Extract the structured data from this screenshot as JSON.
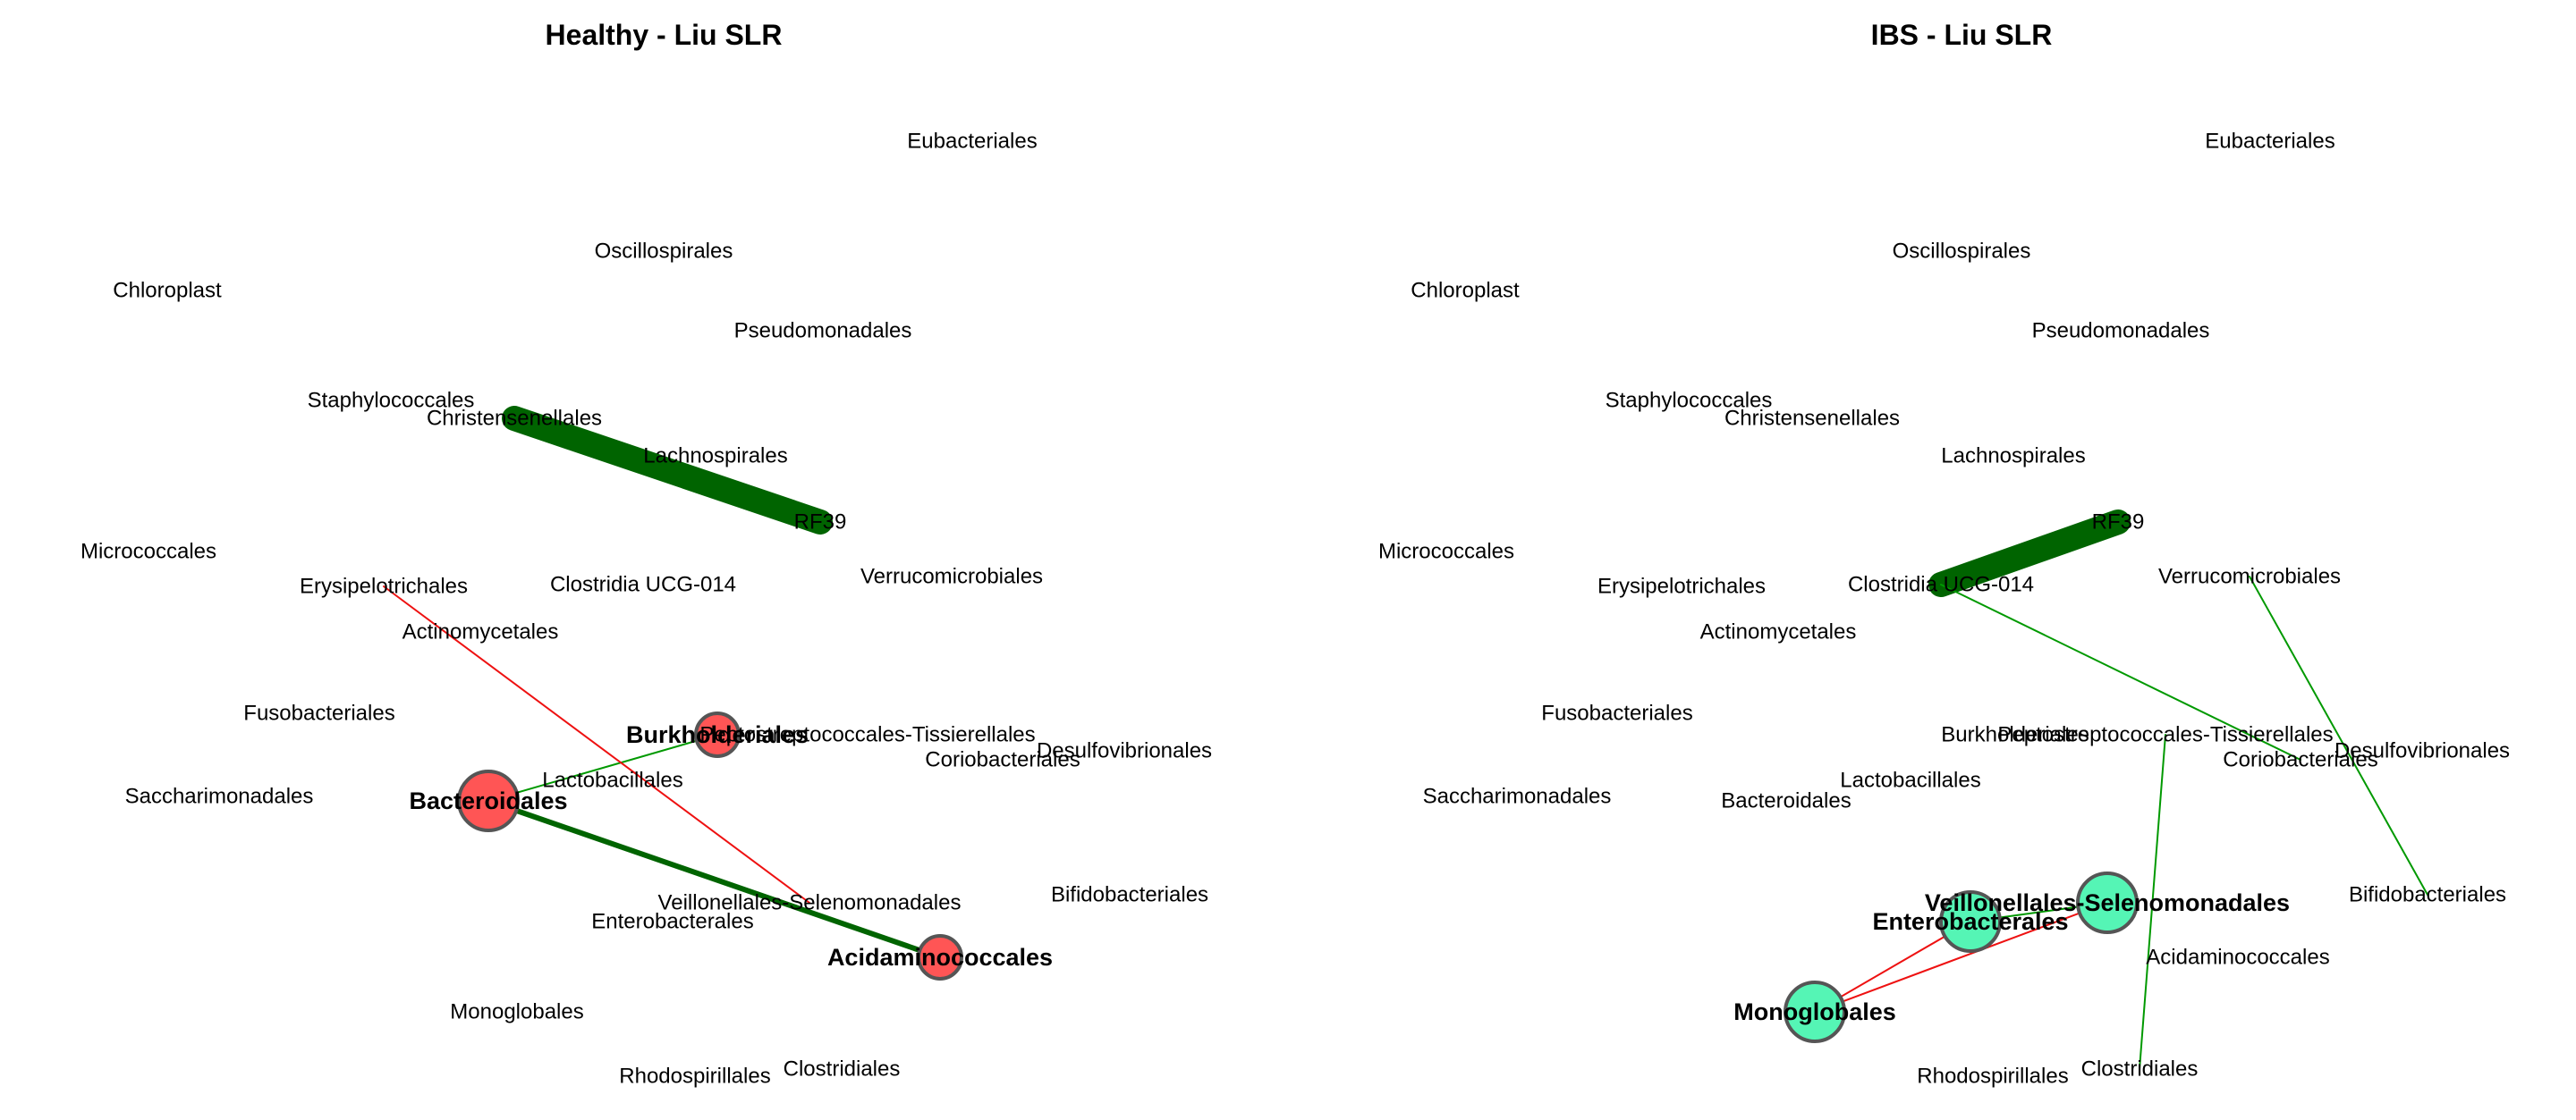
{
  "figure": {
    "panels": [
      {
        "id": "healthy",
        "title": "Healthy - Liu SLR",
        "node_color": "#ff5555",
        "nodes": [
          {
            "label": "Eubacteriales"
          },
          {
            "label": "Oscillospirales"
          },
          {
            "label": "Chloroplast"
          },
          {
            "label": "Pseudomonadales"
          },
          {
            "label": "Staphylococcales"
          },
          {
            "label": "Christensenellales"
          },
          {
            "label": "Lachnospirales"
          },
          {
            "label": "RF39"
          },
          {
            "label": "Micrococcales"
          },
          {
            "label": "Erysipelotrichales"
          },
          {
            "label": "Clostridia UCG-014"
          },
          {
            "label": "Verrucomicrobiales"
          },
          {
            "label": "Actinomycetales"
          },
          {
            "label": "Fusobacteriales"
          },
          {
            "label": "Burkholderiales",
            "highlight": true,
            "degree": 1
          },
          {
            "label": "Peptostreptococcales-Tissierellales"
          },
          {
            "label": "Coriobacteriales"
          },
          {
            "label": "Desulfovibrionales"
          },
          {
            "label": "Lactobacillales"
          },
          {
            "label": "Saccharimonadales"
          },
          {
            "label": "Bacteroidales",
            "highlight": true,
            "degree": 2
          },
          {
            "label": "Bifidobacteriales"
          },
          {
            "label": "Veillonellales-Selenomonadales"
          },
          {
            "label": "Enterobacterales"
          },
          {
            "label": "Acidaminococcales",
            "highlight": true,
            "degree": 1
          },
          {
            "label": "Monoglobales"
          },
          {
            "label": "Rhodospirillales"
          },
          {
            "label": "Clostridiales"
          }
        ],
        "edges": [
          {
            "source": "Christensenellales",
            "target": "RF39",
            "sign": "positive",
            "weight": 1.0
          },
          {
            "source": "Bacteroidales",
            "target": "Acidaminococcales",
            "sign": "positive",
            "weight": 0.2
          },
          {
            "source": "Bacteroidales",
            "target": "Burkholderiales",
            "sign": "positive",
            "weight": 0.06
          },
          {
            "source": "Erysipelotrichales",
            "target": "Veillonellales-Selenomonadales",
            "sign": "negative",
            "weight": 0.06
          }
        ]
      },
      {
        "id": "ibs",
        "title": "IBS - Liu SLR",
        "node_color": "#55f5b5",
        "nodes": [
          {
            "label": "Eubacteriales"
          },
          {
            "label": "Oscillospirales"
          },
          {
            "label": "Chloroplast"
          },
          {
            "label": "Pseudomonadales"
          },
          {
            "label": "Staphylococcales"
          },
          {
            "label": "Christensenellales"
          },
          {
            "label": "Lachnospirales"
          },
          {
            "label": "RF39"
          },
          {
            "label": "Micrococcales"
          },
          {
            "label": "Erysipelotrichales"
          },
          {
            "label": "Clostridia UCG-014"
          },
          {
            "label": "Verrucomicrobiales"
          },
          {
            "label": "Actinomycetales"
          },
          {
            "label": "Fusobacteriales"
          },
          {
            "label": "Burkholderiales"
          },
          {
            "label": "Peptostreptococcales-Tissierellales"
          },
          {
            "label": "Coriobacteriales"
          },
          {
            "label": "Desulfovibrionales"
          },
          {
            "label": "Lactobacillales"
          },
          {
            "label": "Saccharimonadales"
          },
          {
            "label": "Bacteroidales"
          },
          {
            "label": "Bifidobacteriales"
          },
          {
            "label": "Veillonellales-Selenomonadales",
            "highlight": true,
            "degree": 2
          },
          {
            "label": "Enterobacterales",
            "highlight": true,
            "degree": 2
          },
          {
            "label": "Acidaminococcales"
          },
          {
            "label": "Monoglobales",
            "highlight": true,
            "degree": 2
          },
          {
            "label": "Rhodospirillales"
          },
          {
            "label": "Clostridiales"
          }
        ],
        "edges": [
          {
            "source": "RF39",
            "target": "Clostridia UCG-014",
            "sign": "positive",
            "weight": 1.0
          },
          {
            "source": "Clostridia UCG-014",
            "target": "Coriobacteriales",
            "sign": "positive",
            "weight": 0.06
          },
          {
            "source": "Verrucomicrobiales",
            "target": "Bifidobacteriales",
            "sign": "positive",
            "weight": 0.06
          },
          {
            "source": "Peptostreptococcales-Tissierellales",
            "target": "Clostridiales",
            "sign": "positive",
            "weight": 0.06
          },
          {
            "source": "Monoglobales",
            "target": "Enterobacterales",
            "sign": "negative",
            "weight": 0.06
          },
          {
            "source": "Monoglobales",
            "target": "Veillonellales-Selenomonadales",
            "sign": "negative",
            "weight": 0.06
          },
          {
            "source": "Enterobacterales",
            "target": "Veillonellales-Selenomonadales",
            "sign": "positive",
            "weight": 0.06
          }
        ]
      }
    ],
    "colors": {
      "positive_edge": "#006400",
      "positive_edge_thin": "#009900",
      "negative_edge": "#ee1111",
      "node_border": "#555555",
      "background": "#ffffff"
    }
  }
}
